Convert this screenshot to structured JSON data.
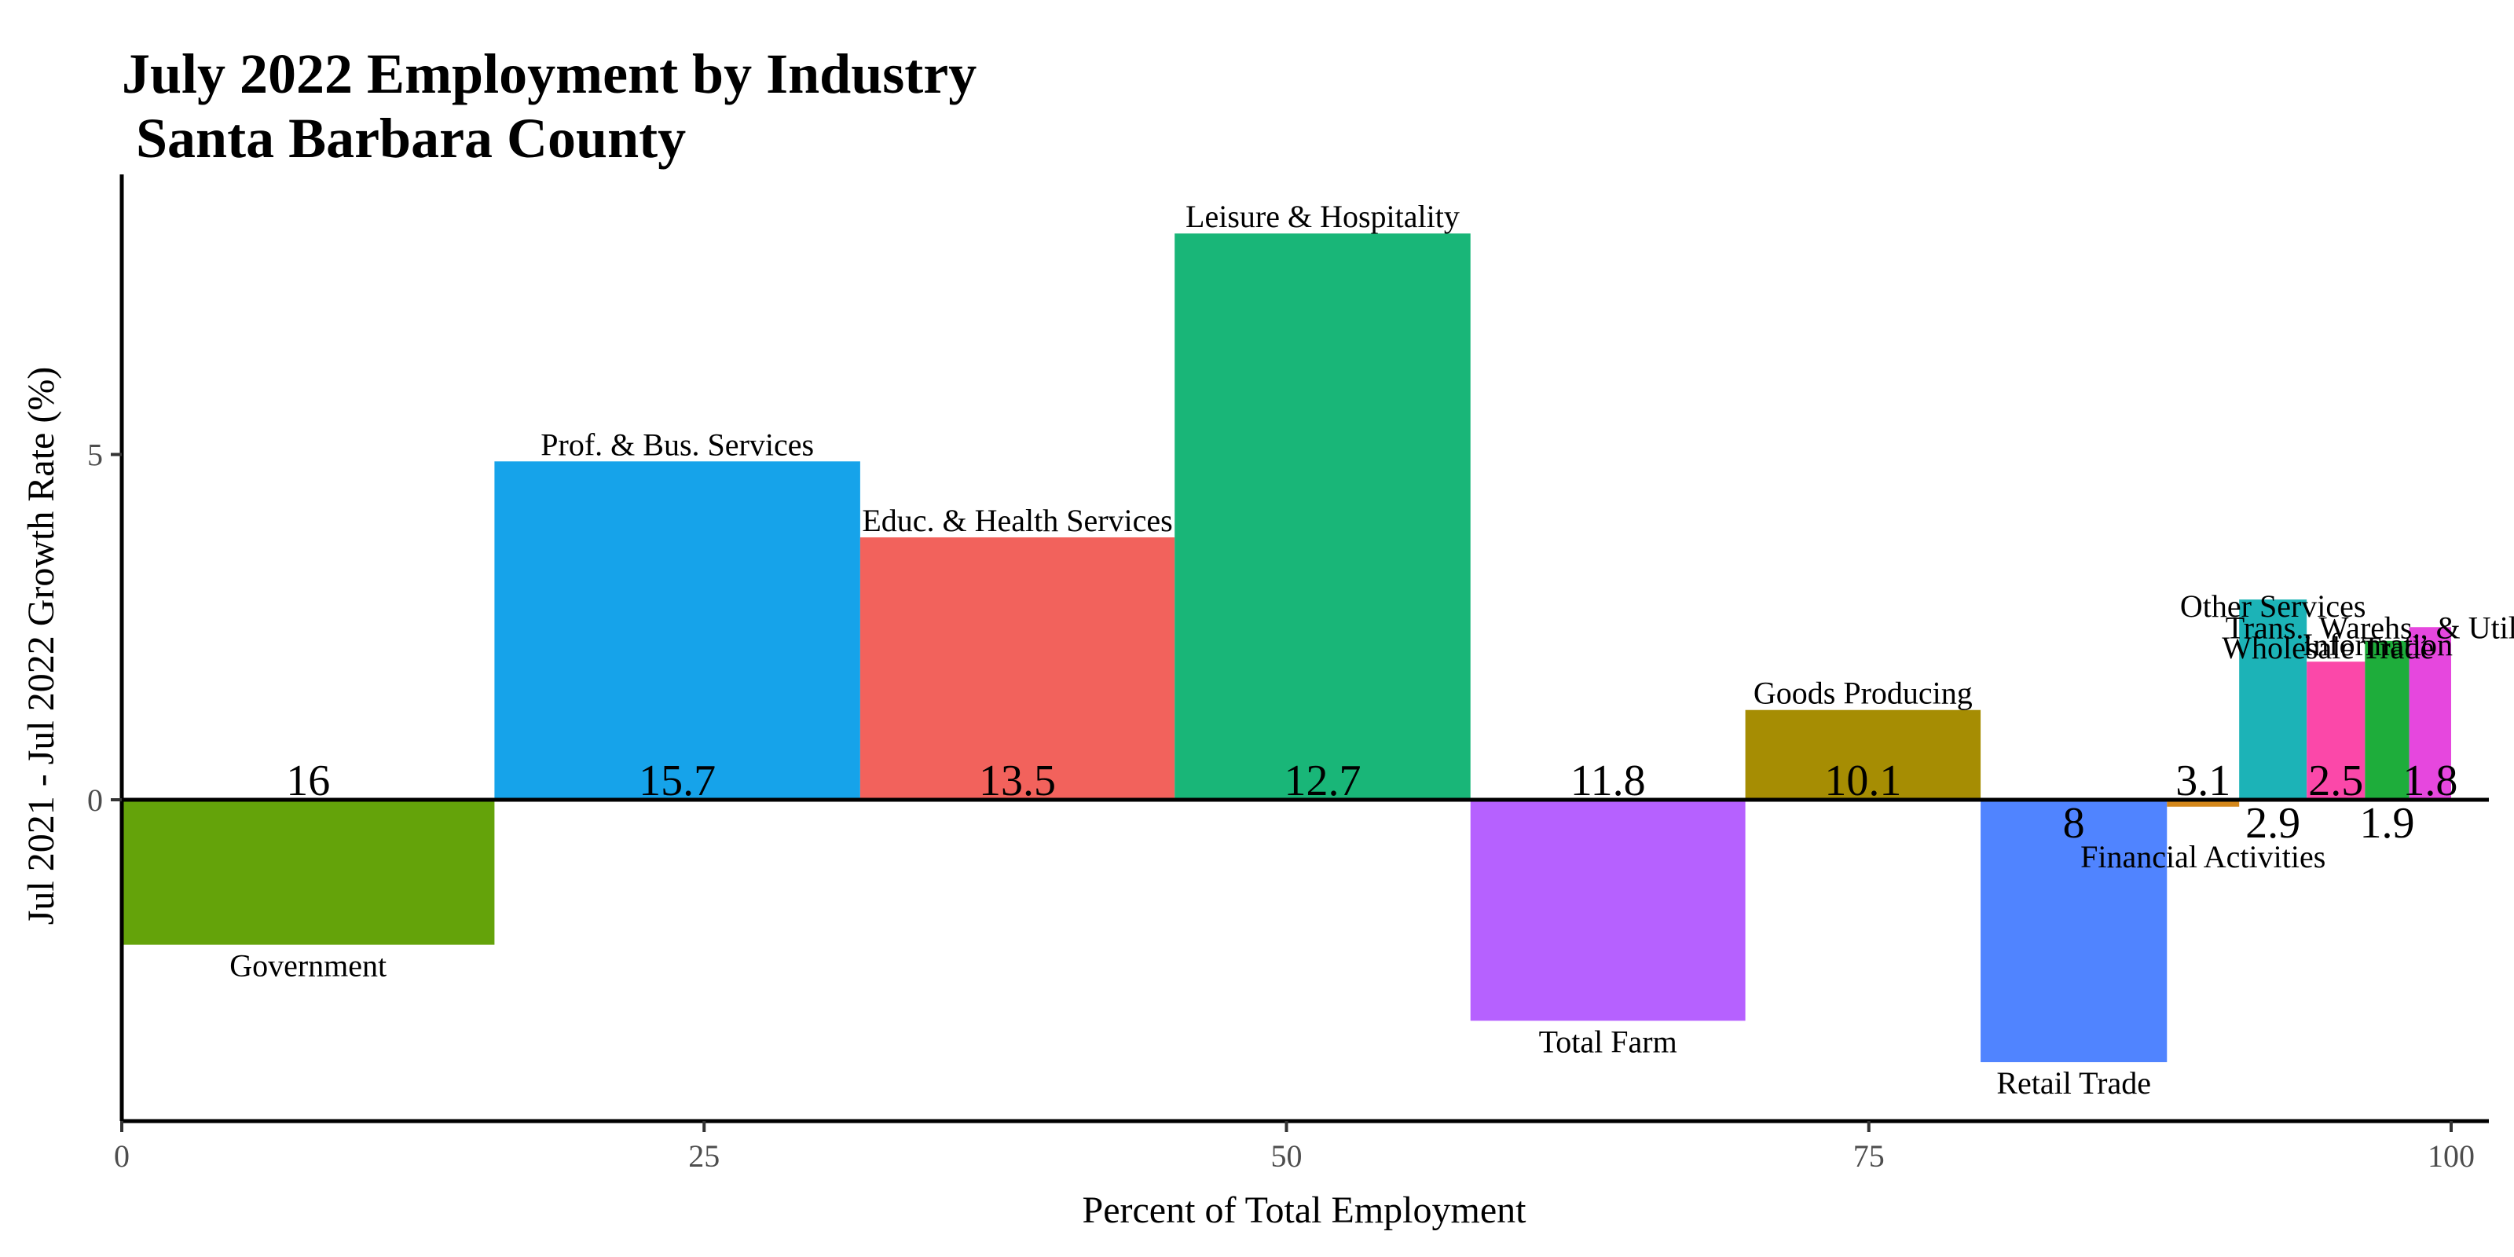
{
  "chart_data": {
    "type": "bar",
    "variant": "variable-width (marimekko)",
    "title": "July 2022 Employment by Industry\n Santa Barbara County",
    "xlabel": "Percent of Total Employment",
    "ylabel": "Jul 2021 - Jul 2022 Growth Rate (%)",
    "xlim": [
      0,
      100
    ],
    "ylim": [
      -2.8,
      8.2
    ],
    "x_ticks": [
      0,
      25,
      50,
      75,
      100
    ],
    "y_ticks": [
      0,
      5
    ],
    "legend": "none",
    "grid": false,
    "bars": [
      {
        "category": "Government",
        "share": 16,
        "share_label": "16",
        "growth": -2.1,
        "color": "#64a30a"
      },
      {
        "category": "Prof. & Bus. Services",
        "share": 15.7,
        "share_label": "15.7",
        "growth": 4.9,
        "color": "#16a3ea"
      },
      {
        "category": "Educ. & Health Services",
        "share": 13.5,
        "share_label": "13.5",
        "growth": 3.8,
        "color": "#f2625c"
      },
      {
        "category": "Leisure & Hospitality",
        "share": 12.7,
        "share_label": "12.7",
        "growth": 8.2,
        "color": "#19b678"
      },
      {
        "category": "Total Farm",
        "share": 11.8,
        "share_label": "11.8",
        "growth": -3.2,
        "color": "#b661ff"
      },
      {
        "category": "Goods Producing",
        "share": 10.1,
        "share_label": "10.1",
        "growth": 1.3,
        "color": "#a68d03"
      },
      {
        "category": "Retail Trade",
        "share": 8,
        "share_label": "8",
        "growth": -3.8,
        "color": "#5084ff"
      },
      {
        "category": "Financial Activities",
        "share": 3.1,
        "share_label": "3.1",
        "growth": -0.1,
        "color": "#d4871a"
      },
      {
        "category": "Other Services",
        "share": 2.9,
        "share_label": "2.9",
        "growth": 2.9,
        "color": "#1cb3b7"
      },
      {
        "category": "Wholesale Trade",
        "share": 2.5,
        "share_label": "2.5",
        "growth": 2.0,
        "color": "#fb48a9"
      },
      {
        "category": "Information",
        "share": 1.9,
        "share_label": "1.9",
        "growth": 2.3,
        "color": "#1ead3b"
      },
      {
        "category": "Trans., Warehs., & Util.",
        "share": 1.8,
        "share_label": "1.8",
        "growth": 2.5,
        "color": "#e647de"
      }
    ]
  }
}
